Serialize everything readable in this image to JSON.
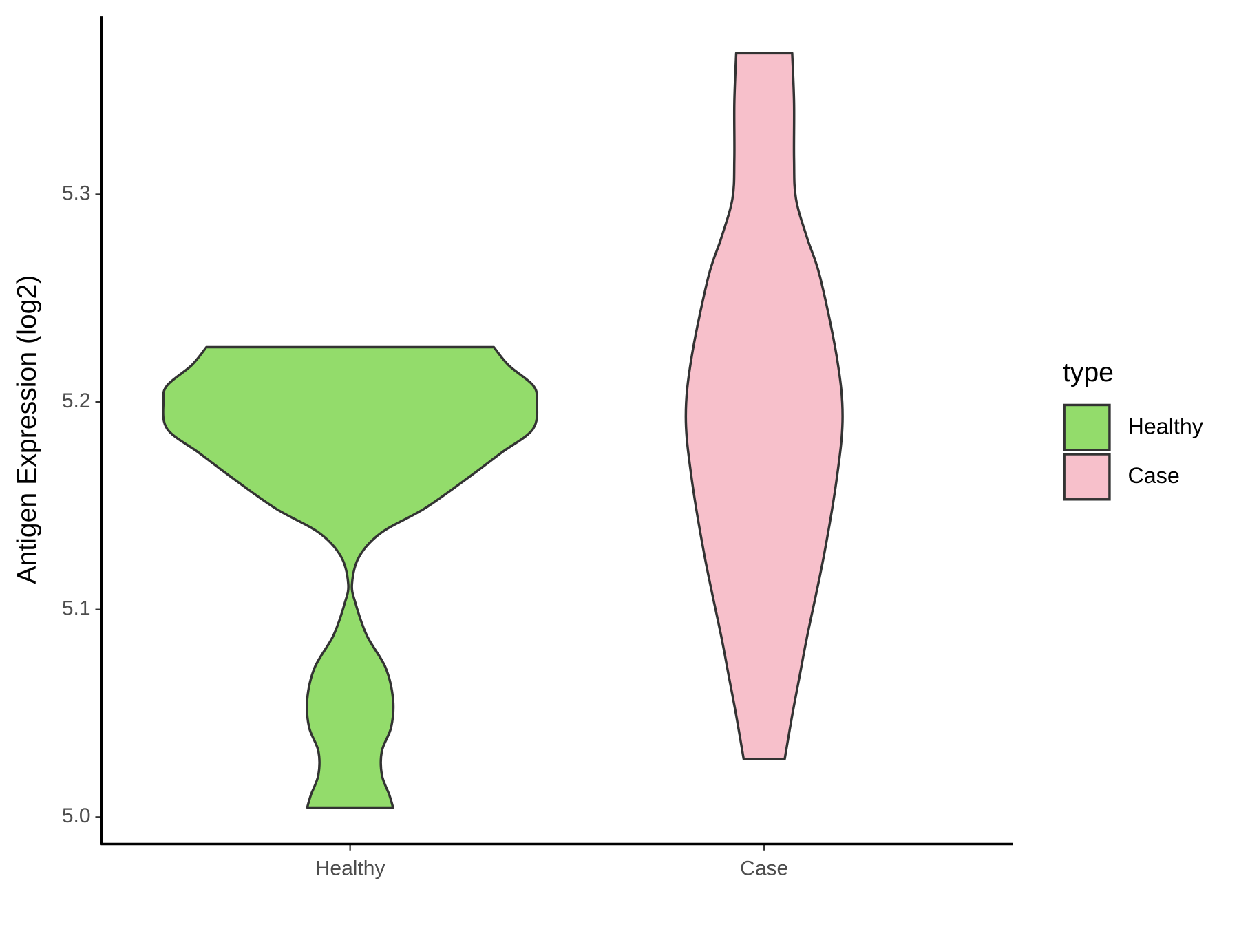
{
  "chart_data": {
    "type": "violin",
    "y_label": "Antigen Expression (log2)",
    "categories": [
      "Healthy",
      "Case"
    ],
    "series": [
      {
        "name": "Healthy",
        "color": "#93dc6b",
        "y": [
          5.0046,
          5.0107,
          5.0203,
          5.0318,
          5.0433,
          5.0567,
          5.072,
          5.0874,
          5.1027,
          5.1123,
          5.1257,
          5.1372,
          5.1487,
          5.164,
          5.1755,
          5.187,
          5.2004,
          5.208,
          5.2176,
          5.2264
        ],
        "density": [
          0.23,
          0.21,
          0.17,
          0.17,
          0.22,
          0.23,
          0.19,
          0.09,
          0.03,
          0.01,
          0.05,
          0.17,
          0.4,
          0.64,
          0.81,
          0.98,
          1,
          0.98,
          0.85,
          0.77
        ]
      },
      {
        "name": "Case",
        "color": "#f7c0cb",
        "y": [
          5.028,
          5.049,
          5.068,
          5.087,
          5.126,
          5.164,
          5.193,
          5.221,
          5.26,
          5.279,
          5.298,
          5.317,
          5.344,
          5.368
        ],
        "density": [
          0.11,
          0.15,
          0.19,
          0.23,
          0.32,
          0.39,
          0.42,
          0.39,
          0.3,
          0.23,
          0.17,
          0.16,
          0.16,
          0.15
        ]
      }
    ],
    "ylim": [
      4.987,
      5.386
    ],
    "yticks": [
      {
        "value": 5,
        "label": "5.0"
      },
      5.1,
      5.2,
      5.3
    ],
    "legend_title": "type",
    "legend_position": "right",
    "outline_color": "#333333"
  }
}
